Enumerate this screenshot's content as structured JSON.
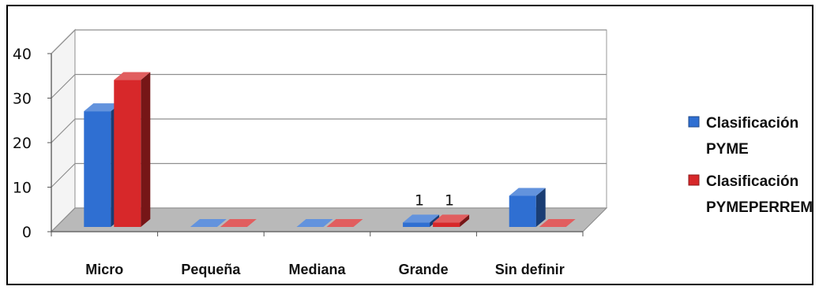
{
  "chart_data": {
    "type": "bar",
    "style": "3d-clustered-column",
    "categories": [
      "Micro",
      "Pequeña",
      "Mediana",
      "Grande",
      "Sin definir"
    ],
    "series": [
      {
        "name": "Clasificación PYME",
        "legend_lines": [
          "Clasificación",
          "PYME"
        ],
        "color": "#2f6fd2",
        "values": [
          26,
          0,
          0,
          1,
          7
        ]
      },
      {
        "name": "Clasificación PYMEPERREM",
        "legend_lines": [
          "Clasificación",
          "PYMEPERREM"
        ],
        "color": "#d7282a",
        "values": [
          33,
          0,
          0,
          1,
          0
        ]
      }
    ],
    "data_labels": [
      {
        "series": 0,
        "category": 3,
        "text": "1"
      },
      {
        "series": 1,
        "category": 3,
        "text": "1"
      }
    ],
    "ylim": [
      0,
      40
    ],
    "yticks": [
      "0",
      "10",
      "20",
      "30",
      "40"
    ],
    "grid": true,
    "legend_position": "right",
    "title": "",
    "xlabel": "",
    "ylabel": ""
  }
}
